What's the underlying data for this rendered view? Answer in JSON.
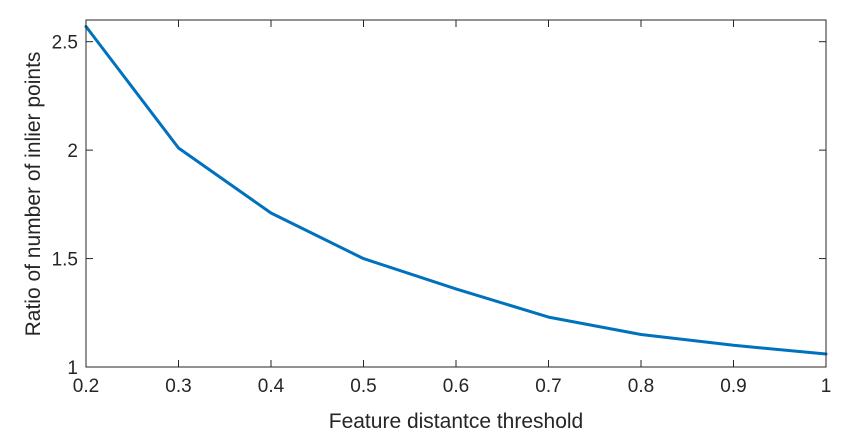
{
  "chart_data": {
    "type": "line",
    "title": "",
    "xlabel": "Feature distantce threshold",
    "ylabel": "Ratio of number of inlier points",
    "xlim": [
      0.2,
      1
    ],
    "ylim": [
      1,
      2.6
    ],
    "xticks": [
      0.2,
      0.3,
      0.4,
      0.5,
      0.6,
      0.7,
      0.8,
      0.9,
      1
    ],
    "xtick_labels": [
      "0.2",
      "0.3",
      "0.4",
      "0.5",
      "0.6",
      "0.7",
      "0.8",
      "0.9",
      "1"
    ],
    "yticks": [
      1,
      1.5,
      2,
      2.5
    ],
    "ytick_labels": [
      "1",
      "1.5",
      "2",
      "2.5"
    ],
    "grid": false,
    "series": [
      {
        "x": [
          0.2,
          0.3,
          0.4,
          0.5,
          0.6,
          0.7,
          0.8,
          0.9,
          1.0
        ],
        "y": [
          2.57,
          2.01,
          1.71,
          1.5,
          1.36,
          1.23,
          1.15,
          1.1,
          1.06
        ],
        "color": "#0072BD"
      }
    ]
  }
}
